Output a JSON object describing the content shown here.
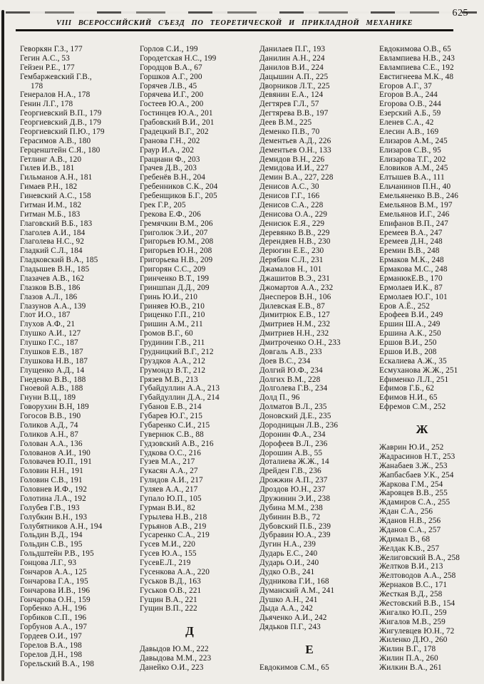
{
  "page": {
    "number": "625",
    "header_title": "VIII ВСЕРОССИЙСКИЙ СЪЕЗД ПО ТЕОРЕТИЧЕСКОЙ И ПРИКЛАДНОЙ МЕХАНИКЕ"
  },
  "index": {
    "columns": [
      {
        "items": [
          {
            "e": "Геворкян Г.З., 177"
          },
          {
            "e": "Гегин А.С., 53"
          },
          {
            "e": "Гейзен Р.Е., 177"
          },
          {
            "e": "Гембаржевский Г.В.,",
            "cont": "178"
          },
          {
            "e": "Генералов Н.А., 178"
          },
          {
            "e": "Генин Л.Г., 178"
          },
          {
            "e": "Георгиевский В.П., 179"
          },
          {
            "e": "Георгиевский Д.В., 179"
          },
          {
            "e": "Георгиевский П.Ю., 179"
          },
          {
            "e": "Герасимов А.В., 180"
          },
          {
            "e": "Герценштейн С.Я., 180"
          },
          {
            "e": "Гетлинг А.В., 120"
          },
          {
            "e": "Гилев И.В., 181"
          },
          {
            "e": "Гильманов А.Н., 181"
          },
          {
            "e": "Гимаев Р.Н., 182"
          },
          {
            "e": "Гиневский А.С., 158"
          },
          {
            "e": "Гитман И.М., 182"
          },
          {
            "e": "Гитман М.Б., 183"
          },
          {
            "e": "Глаговский В.Б., 183"
          },
          {
            "e": "Глаголев А.И., 184"
          },
          {
            "e": "Глаголева Н.С., 92"
          },
          {
            "e": "Гладкий С.Л., 184"
          },
          {
            "e": "Гладковский В.А., 185"
          },
          {
            "e": "Гладышев В.Н., 185"
          },
          {
            "e": "Глазачев А.В., 162"
          },
          {
            "e": "Глазков В.В., 186"
          },
          {
            "e": "Глазов А.Л., 186"
          },
          {
            "e": "Глазунов А.А., 139"
          },
          {
            "e": "Глот И.О., 187"
          },
          {
            "e": "Глухов А.Ф., 21"
          },
          {
            "e": "Глушко А.И., 127"
          },
          {
            "e": "Глушко Г.С., 187"
          },
          {
            "e": "Глушков Е.В., 187"
          },
          {
            "e": "Глушкова Н.В., 187"
          },
          {
            "e": "Глущенко А.Д., 14"
          },
          {
            "e": "Гнеденко В.В., 188"
          },
          {
            "e": "Гноевой А.В., 188"
          },
          {
            "e": "Гнуни В.Ц., 189"
          },
          {
            "e": "Говорухин В.Н, 189"
          },
          {
            "e": "Гогосов В.В., 190"
          },
          {
            "e": "Голиков А.Д., 74"
          },
          {
            "e": "Голиков А.Н., 87"
          },
          {
            "e": "Голован А.А., 136"
          },
          {
            "e": "Голованов А.И., 190"
          },
          {
            "e": "Головачев Ю.П., 191"
          },
          {
            "e": "Головин Н.Н., 191"
          },
          {
            "e": "Головин С.В., 191"
          },
          {
            "e": "Головнев И.Ф., 192"
          },
          {
            "e": "Голотина Л.А., 192"
          },
          {
            "e": "Голубев Г.В., 193"
          },
          {
            "e": "Голубкин В.Н., 193"
          },
          {
            "e": "Голубятников А.Н., 194"
          },
          {
            "e": "Гольдин В.Д., 194"
          },
          {
            "e": "Гольдин С.В., 195"
          },
          {
            "e": "Гольдштейн Р.В., 195"
          },
          {
            "e": "Гонцова Л.Г., 93"
          },
          {
            "e": "Гончаров А.А., 125"
          },
          {
            "e": "Гончарова Г.А., 195"
          },
          {
            "e": "Гончарова И.В., 196"
          },
          {
            "e": "Гончарова О.Н., 159"
          },
          {
            "e": "Горбенко А.Н., 196"
          },
          {
            "e": "Горбиков С.П., 196"
          },
          {
            "e": "Горбунов А.А., 197"
          },
          {
            "e": "Гордеев О.И., 197"
          },
          {
            "e": "Горелов В.А., 198"
          },
          {
            "e": "Горелов Д.Н., 198"
          },
          {
            "e": "Горельский В.А., 198"
          }
        ]
      },
      {
        "items": [
          {
            "e": "Горлов С.И., 199"
          },
          {
            "e": "Городетская Н.С., 199"
          },
          {
            "e": "Городцов В.А., 67"
          },
          {
            "e": "Горшков А.Г., 200"
          },
          {
            "e": "Горячев Л.В., 45"
          },
          {
            "e": "Горячева И.Г., 200"
          },
          {
            "e": "Гостеев Ю.А., 200"
          },
          {
            "e": "Гостинцев Ю.А., 201"
          },
          {
            "e": "Грабовский В.И., 201"
          },
          {
            "e": "Градецкий В.Г., 202"
          },
          {
            "e": "Гранова Г.Н., 202"
          },
          {
            "e": "Граур И.А., 202"
          },
          {
            "e": "Грациани Ф., 203"
          },
          {
            "e": "Грачев Д.В., 203"
          },
          {
            "e": "Гребенёв В.Н., 204"
          },
          {
            "e": "Гребенников С.К., 204"
          },
          {
            "e": "Гребенщиков Б.Г., 205"
          },
          {
            "e": "Грек Г.Р., 205"
          },
          {
            "e": "Грекова Е.Ф., 206"
          },
          {
            "e": "Гремячкин В.М., 206"
          },
          {
            "e": "Григолюк Э.И., 207"
          },
          {
            "e": "Григорьев Ю.М., 208"
          },
          {
            "e": "Григорьев Ю.Н., 208"
          },
          {
            "e": "Григорьева Н.В., 209"
          },
          {
            "e": "Григорян С.С., 209"
          },
          {
            "e": "Гринченко В.Т., 199"
          },
          {
            "e": "Гриншпан Д.Д., 209"
          },
          {
            "e": "Гринь Ю.И., 210"
          },
          {
            "e": "Гриняев Ю.В., 210"
          },
          {
            "e": "Гриценко Г.П., 210"
          },
          {
            "e": "Гришин А.М., 211"
          },
          {
            "e": "Громов В.Г., 60"
          },
          {
            "e": "Грудинин Г.В., 211"
          },
          {
            "e": "Грудницкий В.Г., 212"
          },
          {
            "e": "Груздков А.А., 212"
          },
          {
            "e": "Грумондз В.Т., 212"
          },
          {
            "e": "Грязев М.В., 213"
          },
          {
            "e": "Губайдуллин А.А., 213"
          },
          {
            "e": "Губайдуллин Д.А., 214"
          },
          {
            "e": "Губанов Е.В., 214"
          },
          {
            "e": "Губарев Ю.Г., 215"
          },
          {
            "e": "Губаренко С.И., 215"
          },
          {
            "e": "Гувернюк С.В., 88"
          },
          {
            "e": "Гудзовский А.В., 216"
          },
          {
            "e": "Гудкова О.С., 216"
          },
          {
            "e": "Гузев М.А., 217"
          },
          {
            "e": "Гукасян А.А., 27"
          },
          {
            "e": "Гулидов А.И., 217"
          },
          {
            "e": "Гуляев А.А., 217"
          },
          {
            "e": "Гупало Ю.П., 105"
          },
          {
            "e": "Гурман В.И., 82"
          },
          {
            "e": "Гурылева Н.В., 218"
          },
          {
            "e": "Гурьянов А.В., 219"
          },
          {
            "e": "Гусаренко С.А., 219"
          },
          {
            "e": "Гусев М.И., 220"
          },
          {
            "e": "Гусев Ю.А., 155"
          },
          {
            "e": "ГусевЕ.Л., 219"
          },
          {
            "e": "Гусенкова А.А., 220"
          },
          {
            "e": "Гуськов В.Д., 163"
          },
          {
            "e": "Гуськов О.В., 221"
          },
          {
            "e": "Гущин В.А., 221"
          },
          {
            "e": "Гущин В.П., 222"
          },
          {
            "h": "Д"
          },
          {
            "e": "Давыдов Ю.М., 222"
          },
          {
            "e": "Давыдова М.М., 223"
          },
          {
            "e": "Данейко О.И., 223"
          }
        ]
      },
      {
        "items": [
          {
            "e": "Данилаев П.Г., 193"
          },
          {
            "e": "Данилин А.Н., 224"
          },
          {
            "e": "Данилов В.И., 224"
          },
          {
            "e": "Дацышин А.П., 225"
          },
          {
            "e": "Дворников Л.Т., 225"
          },
          {
            "e": "Девянин Е.А., 124"
          },
          {
            "e": "Дегтярев Г.Л., 57"
          },
          {
            "e": "Дегтярева В.В., 197"
          },
          {
            "e": "Деев В.М., 225"
          },
          {
            "e": "Деменко П.В., 70"
          },
          {
            "e": "Дементьев А.Д., 226"
          },
          {
            "e": "Дементьев О.Н., 133"
          },
          {
            "e": "Демидов В.Н., 226"
          },
          {
            "e": "Демидова И.И., 227"
          },
          {
            "e": "Демин В.А., 227, 228"
          },
          {
            "e": "Денисов А.С., 30"
          },
          {
            "e": "Денисов Г.Г., 166"
          },
          {
            "e": "Денисов С.А., 228"
          },
          {
            "e": "Денисова О.А., 229"
          },
          {
            "e": "Денисюк Е.Я., 229"
          },
          {
            "e": "Деревянко В.В., 229"
          },
          {
            "e": "Дерендяев Н.В., 230"
          },
          {
            "e": "Дерюгин Е.Е., 230"
          },
          {
            "e": "Дерябин С.Л., 231"
          },
          {
            "e": "Джамалов Н., 101"
          },
          {
            "e": "Джашитов В.Э., 231"
          },
          {
            "e": "Джомартов А.А., 232"
          },
          {
            "e": "Днесперов В.Н., 106"
          },
          {
            "e": "Дилевская Е.В., 87"
          },
          {
            "e": "Димитрюк Е.В., 127"
          },
          {
            "e": "Дмитриев Н.М., 232"
          },
          {
            "e": "Дмитриев Н.Н., 232"
          },
          {
            "e": "Дмитроченко О.Н., 233"
          },
          {
            "e": "Довгаль А.В., 233"
          },
          {
            "e": "Доев В.С., 234"
          },
          {
            "e": "Долгий Ю.Ф., 234"
          },
          {
            "e": "Долгих В.М., 228"
          },
          {
            "e": "Долголева Г.В., 234"
          },
          {
            "e": "Долд П., 96"
          },
          {
            "e": "Долматов В.Л., 235"
          },
          {
            "e": "Доновский Д.Е., 235"
          },
          {
            "e": "Дородницын Л.В., 236"
          },
          {
            "e": "Доронин Ф.А., 234"
          },
          {
            "e": "Дорофеев В.Л., 236"
          },
          {
            "e": "Дорошин А.В., 55"
          },
          {
            "e": "Доталиева Ж.Ж., 14"
          },
          {
            "e": "Дрейден Г.В., 236"
          },
          {
            "e": "Дрожжин А.П., 237"
          },
          {
            "e": "Дроздов Ю.Н., 237"
          },
          {
            "e": "Дружинин Э.И., 238"
          },
          {
            "e": "Дубина М.М., 238"
          },
          {
            "e": "Дубинин В.В., 72"
          },
          {
            "e": "Дубовский П.Б., 239"
          },
          {
            "e": "Дубравин Ю.А., 239"
          },
          {
            "e": "Дугин Н.А., 239"
          },
          {
            "e": "Дударь Е.С., 240"
          },
          {
            "e": "Дударь О.И., 240"
          },
          {
            "e": "Дудко О.В., 241"
          },
          {
            "e": "Дудникова Г.И., 168"
          },
          {
            "e": "Думанский А.М., 241"
          },
          {
            "e": "Душко А.Н., 241"
          },
          {
            "e": "Дыда А.А., 242"
          },
          {
            "e": "Дьяченко А.И., 242"
          },
          {
            "e": "Дядьков П.Г., 243"
          },
          {
            "h": "Е"
          },
          {
            "e": "Евдокимов С.М., 65"
          }
        ]
      },
      {
        "items": [
          {
            "e": "Евдокимова О.В., 65"
          },
          {
            "e": "Евлампиева Н.В., 243"
          },
          {
            "e": "Евлампиева С.Е., 192"
          },
          {
            "e": "Евстигнеева М.К., 48"
          },
          {
            "e": "Егоров А.Г., 37"
          },
          {
            "e": "Егоров В.А., 244"
          },
          {
            "e": "Егорова О.В., 244"
          },
          {
            "e": "Езерский А.Б., 59"
          },
          {
            "e": "Еленев С.А., 42"
          },
          {
            "e": "Елесин А.В., 169"
          },
          {
            "e": "Елизаров А.М., 245"
          },
          {
            "e": "Елизаров С.В., 95"
          },
          {
            "e": "Елизарова Т.Г., 202"
          },
          {
            "e": "Еловиков А.М., 245"
          },
          {
            "e": "Елтышев В.А., 111"
          },
          {
            "e": "Ельчанинов П.Н., 40"
          },
          {
            "e": "Емельяненко В.В., 246"
          },
          {
            "e": "Емельянов В.М., 197"
          },
          {
            "e": "Емельянов И.Г., 246"
          },
          {
            "e": "Епифанов В.П., 247"
          },
          {
            "e": "Еремеев В.А., 247"
          },
          {
            "e": "Еремеев Д.Н., 248"
          },
          {
            "e": "Еремин В.В., 248"
          },
          {
            "e": "Ермаков М.К., 248"
          },
          {
            "e": "Ермакова М.С., 248"
          },
          {
            "e": "ЕрманюкЕ.В., 170"
          },
          {
            "e": "Ермолаев И.К., 87"
          },
          {
            "e": "Ермолаев Ю.Г., 101"
          },
          {
            "e": "Еров А.Ё., 252"
          },
          {
            "e": "Ерофеев В.И., 249"
          },
          {
            "e": "Ершин Ш.А., 249"
          },
          {
            "e": "Ершина А.К., 250"
          },
          {
            "e": "Ершов В.И., 250"
          },
          {
            "e": "Ершов И.В., 208"
          },
          {
            "e": "Ескалиева А.Ж., 35"
          },
          {
            "e": "Есмуханова Ж.Ж., 251"
          },
          {
            "e": "Ефименко Л.Л., 251"
          },
          {
            "e": "Ефимов Г.Б., 62"
          },
          {
            "e": "Ефимов Н.И., 65"
          },
          {
            "e": "Ефремов С.М., 252"
          },
          {
            "h": "Ж"
          },
          {
            "e": "Жаврин Ю.И., 252"
          },
          {
            "e": "Жадрасинов Н.Т., 253"
          },
          {
            "e": "Жанабаев З.Ж., 253"
          },
          {
            "e": "Жапбасбаев У.К., 254"
          },
          {
            "e": "Жаркова Г.М., 254"
          },
          {
            "e": "Жаровцев В.В., 255"
          },
          {
            "e": "Ждамиров С.А., 255"
          },
          {
            "e": "Ждан С.А., 256"
          },
          {
            "e": "Жданов Н.В., 256"
          },
          {
            "e": "Жданов С.А., 257"
          },
          {
            "e": "Ждимал В., 68"
          },
          {
            "e": "Желдак К.В., 257"
          },
          {
            "e": "Желиговский В.А., 258"
          },
          {
            "e": "Желтков В.И., 213"
          },
          {
            "e": "Желтоводов А.А., 258"
          },
          {
            "e": "Жернаков В.С., 171"
          },
          {
            "e": "Жесткая В.Д., 258"
          },
          {
            "e": "Жестовский В.В., 154"
          },
          {
            "e": "Жигалко Ю.П., 259"
          },
          {
            "e": "Жигалов М.В., 259"
          },
          {
            "e": "Жигулевцев Ю.Н., 72"
          },
          {
            "e": "Жиленко Д.Ю., 260"
          },
          {
            "e": "Жилин В.Г., 178"
          },
          {
            "e": "Жилин П.А., 260"
          },
          {
            "e": "Жилкин В.А., 261"
          }
        ]
      }
    ]
  }
}
